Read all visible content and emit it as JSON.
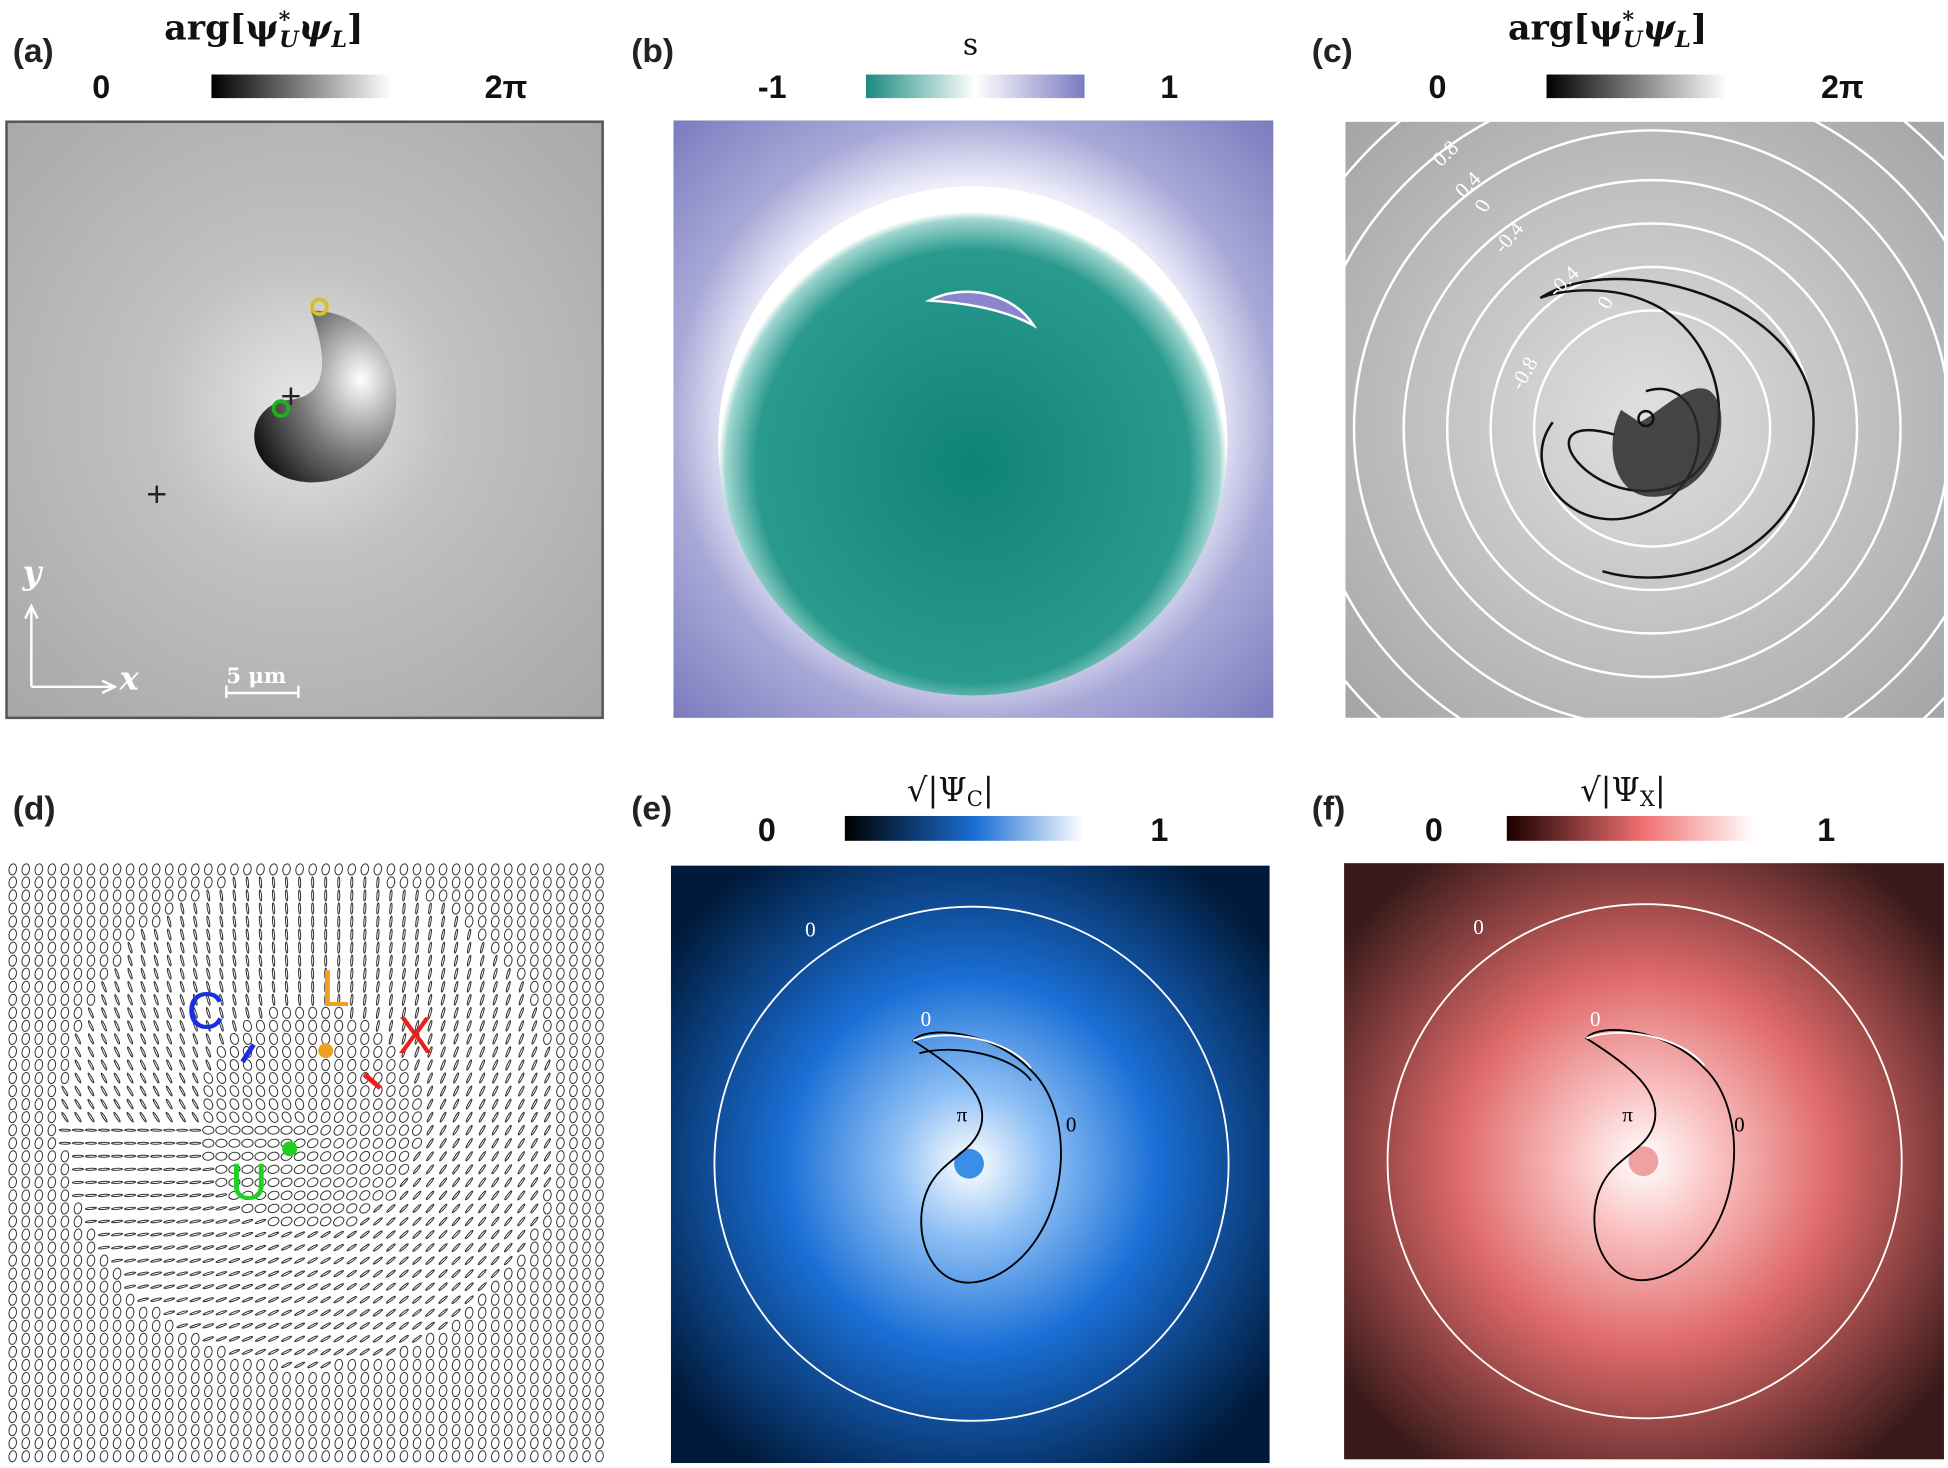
{
  "figure": {
    "panels": [
      {
        "label": "(a)",
        "title": {
          "pre": "arg[ψ",
          "sup": "*",
          "sub1": "U",
          "mid": "ψ",
          "sub2": "L",
          "post": "]"
        },
        "cb_min": "0",
        "cb_max": "2π",
        "annotations": {
          "y_axis": "y",
          "x_axis": "x",
          "scale_bar": "5 μm"
        }
      },
      {
        "label": "(b)",
        "title": "s",
        "cb_min": "-1",
        "cb_max": "1",
        "colors": {
          "low": "#1a8a80",
          "high": "#8080c0"
        }
      },
      {
        "label": "(c)",
        "title": {
          "pre": "arg[ψ",
          "sup": "*",
          "sub1": "U",
          "mid": "ψ",
          "sub2": "L",
          "post": "]"
        },
        "cb_min": "0",
        "cb_max": "2π",
        "contour_labels": [
          "0.8",
          "0.4",
          "0",
          "-0.4",
          "-0.4",
          "0",
          "-0.8"
        ]
      },
      {
        "label": "(d)",
        "annotations": {
          "C": "C",
          "L": "L",
          "X": "X",
          "U": "U"
        },
        "colors": {
          "C": "#1a2fe0",
          "L": "#f0a020",
          "X": "#e82020",
          "U": "#20d020"
        }
      },
      {
        "label": "(e)",
        "title": {
          "pre": "√|Ψ",
          "sub": "C",
          "post": "|"
        },
        "cb_min": "0",
        "cb_max": "1",
        "contour_labels": [
          "0",
          "0",
          "π",
          "0"
        ],
        "colors": {
          "edge": "#001a3a",
          "mid": "#1a6fd6",
          "center": "#ffffff"
        }
      },
      {
        "label": "(f)",
        "title": {
          "pre": "√|Ψ",
          "sub": "X",
          "post": "|"
        },
        "cb_min": "0",
        "cb_max": "1",
        "contour_labels": [
          "0",
          "0",
          "π",
          "0"
        ],
        "colors": {
          "edge": "#3a1a1a",
          "mid": "#f07070",
          "center": "#ffffff"
        }
      }
    ]
  }
}
